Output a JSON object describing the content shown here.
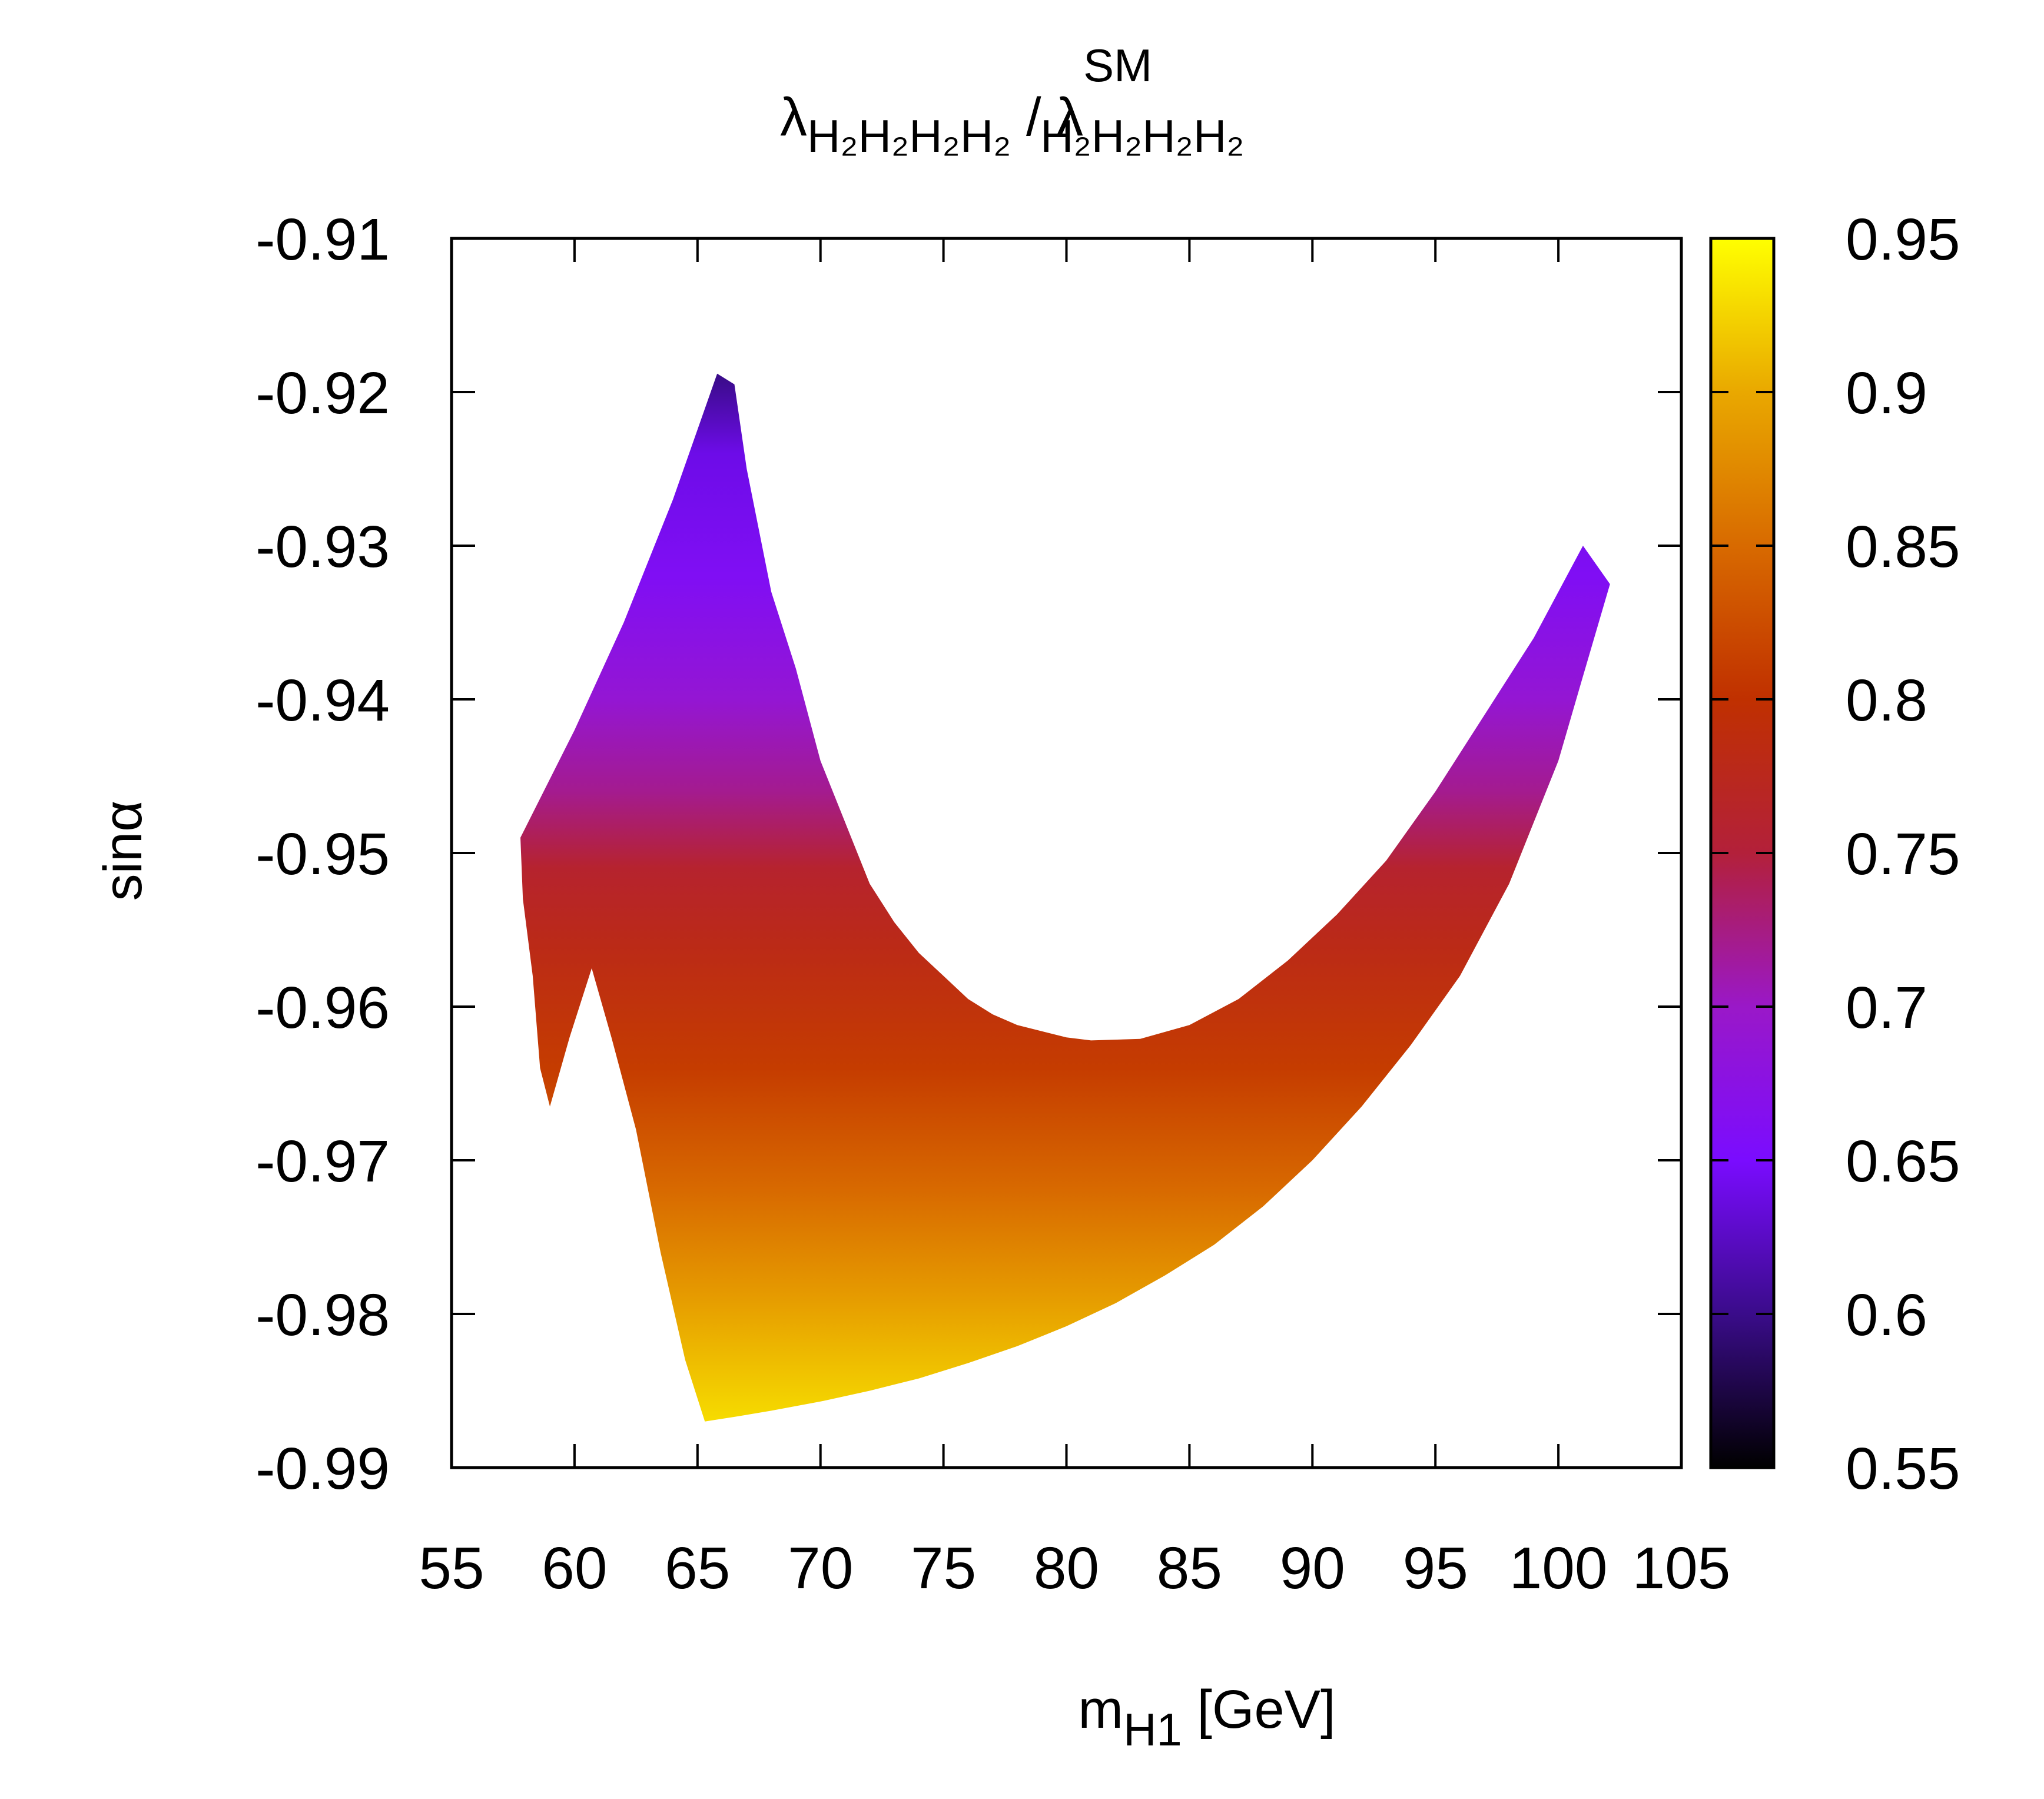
{
  "chart_data": {
    "type": "heatmap",
    "title": {
      "symbol": "λ",
      "subscript": "H2H2H2H2",
      "separator": "/",
      "superscript": "SM"
    },
    "xlabel": {
      "main": "m",
      "subscript": "H1",
      "unit": "[GeV]"
    },
    "ylabel": "sinα",
    "xlim": [
      55,
      105
    ],
    "ylim": [
      -0.99,
      -0.91
    ],
    "xticks": [
      55,
      60,
      65,
      70,
      75,
      80,
      85,
      90,
      95,
      100,
      105
    ],
    "xtick_labels": [
      "55",
      "60",
      "65",
      "70",
      "75",
      "80",
      "85",
      "90",
      "95",
      "100",
      "105"
    ],
    "yticks": [
      -0.91,
      -0.92,
      -0.93,
      -0.94,
      -0.95,
      -0.96,
      -0.97,
      -0.98,
      -0.99
    ],
    "ytick_labels": [
      "-0.91",
      "-0.92",
      "-0.93",
      "-0.94",
      "-0.95",
      "-0.96",
      "-0.97",
      "-0.98",
      "-0.99"
    ],
    "colorbar": {
      "range": [
        0.55,
        0.95
      ],
      "ticks": [
        0.95,
        0.9,
        0.85,
        0.8,
        0.75,
        0.7,
        0.65,
        0.6,
        0.55
      ],
      "tick_labels": [
        "0.95",
        "0.9",
        "0.85",
        "0.8",
        "0.75",
        "0.7",
        "0.65",
        "0.6",
        "0.55"
      ],
      "colors": [
        {
          "v": 0.55,
          "c": "#000000"
        },
        {
          "v": 0.6,
          "c": "#3a0c8a"
        },
        {
          "v": 0.65,
          "c": "#7a0cff"
        },
        {
          "v": 0.7,
          "c": "#9a18c8"
        },
        {
          "v": 0.75,
          "c": "#b3203a"
        },
        {
          "v": 0.8,
          "c": "#c03000"
        },
        {
          "v": 0.85,
          "c": "#d86a00"
        },
        {
          "v": 0.9,
          "c": "#e9a800"
        },
        {
          "v": 0.95,
          "c": "#ffff00"
        }
      ]
    },
    "region": {
      "description_free_polygons_in_data_units": true,
      "upper_boundary": [
        [
          57.8,
          -0.949
        ],
        [
          60,
          -0.942
        ],
        [
          62,
          -0.935
        ],
        [
          64,
          -0.927
        ],
        [
          65.8,
          -0.9188
        ],
        [
          66.5,
          -0.9195
        ],
        [
          67,
          -0.925
        ],
        [
          68,
          -0.933
        ],
        [
          69,
          -0.938
        ],
        [
          70,
          -0.944
        ],
        [
          71,
          -0.948
        ],
        [
          72,
          -0.952
        ],
        [
          73,
          -0.9545
        ],
        [
          74,
          -0.9565
        ],
        [
          75,
          -0.958
        ],
        [
          76,
          -0.9595
        ],
        [
          77,
          -0.9605
        ],
        [
          78,
          -0.9612
        ],
        [
          80,
          -0.962
        ],
        [
          81,
          -0.9622
        ],
        [
          83,
          -0.9621
        ],
        [
          85,
          -0.9612
        ],
        [
          87,
          -0.9595
        ],
        [
          89,
          -0.957
        ],
        [
          91,
          -0.954
        ],
        [
          93,
          -0.9505
        ],
        [
          95,
          -0.946
        ],
        [
          97,
          -0.941
        ],
        [
          99,
          -0.936
        ],
        [
          101,
          -0.93
        ],
        [
          102.1,
          -0.9325
        ]
      ],
      "lower_boundary": [
        [
          102.1,
          -0.9325
        ],
        [
          101,
          -0.9385
        ],
        [
          100,
          -0.944
        ],
        [
          98,
          -0.952
        ],
        [
          96,
          -0.958
        ],
        [
          94,
          -0.9625
        ],
        [
          92,
          -0.9665
        ],
        [
          90,
          -0.97
        ],
        [
          88,
          -0.973
        ],
        [
          86,
          -0.9755
        ],
        [
          84,
          -0.9775
        ],
        [
          82,
          -0.9793
        ],
        [
          80,
          -0.9808
        ],
        [
          78,
          -0.9821
        ],
        [
          76,
          -0.9832
        ],
        [
          74,
          -0.9842
        ],
        [
          72,
          -0.985
        ],
        [
          70,
          -0.9857
        ],
        [
          68,
          -0.9863
        ],
        [
          66.5,
          -0.9867
        ],
        [
          65.3,
          -0.987
        ],
        [
          64.5,
          -0.983
        ],
        [
          63.5,
          -0.976
        ],
        [
          62.5,
          -0.968
        ],
        [
          61.5,
          -0.962
        ],
        [
          60.7,
          -0.9575
        ],
        [
          59.8,
          -0.962
        ],
        [
          59.0,
          -0.9665
        ],
        [
          58.6,
          -0.964
        ],
        [
          58.3,
          -0.958
        ],
        [
          57.9,
          -0.953
        ],
        [
          57.8,
          -0.949
        ]
      ],
      "value_bands": [
        {
          "sin_alpha": -0.919,
          "value": 0.6
        },
        {
          "sin_alpha": -0.924,
          "value": 0.64
        },
        {
          "sin_alpha": -0.932,
          "value": 0.66
        },
        {
          "sin_alpha": -0.94,
          "value": 0.69
        },
        {
          "sin_alpha": -0.946,
          "value": 0.72
        },
        {
          "sin_alpha": -0.951,
          "value": 0.76
        },
        {
          "sin_alpha": -0.956,
          "value": 0.78
        },
        {
          "sin_alpha": -0.964,
          "value": 0.81
        },
        {
          "sin_alpha": -0.972,
          "value": 0.85
        },
        {
          "sin_alpha": -0.979,
          "value": 0.89
        },
        {
          "sin_alpha": -0.987,
          "value": 0.93
        }
      ]
    }
  }
}
